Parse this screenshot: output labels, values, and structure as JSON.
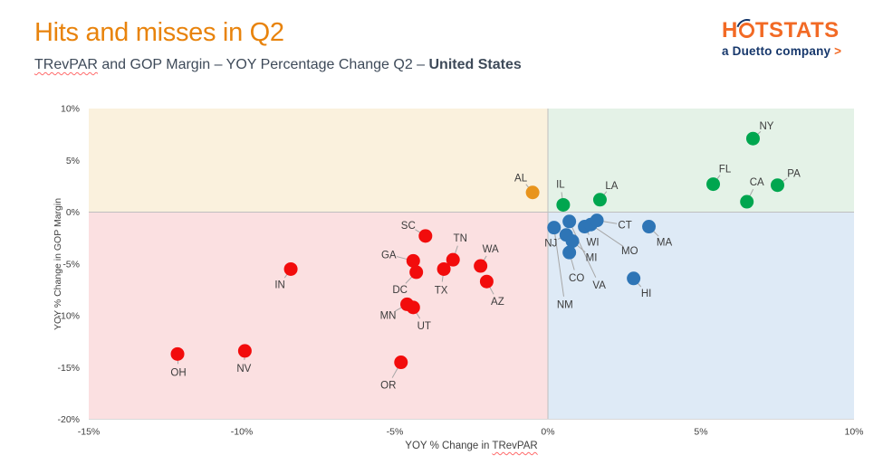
{
  "header": {
    "title": "Hits and misses in Q2",
    "subtitle_trevpar": "TRevPAR",
    "subtitle_mid": " and GOP Margin – YOY Percentage Change Q2 – ",
    "subtitle_country": "United States"
  },
  "logo": {
    "word_start": "H",
    "word_rest": "TSTATS",
    "tagline": "a Duetto company",
    "arrow": ">"
  },
  "colors": {
    "title_orange": "#E8830C",
    "logo_orange": "#F26A25",
    "logo_navy": "#16376B",
    "subtitle_gray": "#3E4A59",
    "axis_text": "#404040",
    "leader_line": "#A6A6A6",
    "zero_line": "#BFBFBF",
    "bottom_axis_line": "#D9D9D9",
    "quadrant_top_left": "#FAF1DD",
    "quadrant_top_right": "#E4F2E7",
    "quadrant_bottom_left": "#FBE0E1",
    "quadrant_bottom_right": "#DEEAF6",
    "red_series": "#F20C0C",
    "orange_series": "#E8941C",
    "green_series": "#00A64F",
    "blue_series": "#2E75B6"
  },
  "chart_data": {
    "type": "scatter",
    "title": "Hits and misses in Q2",
    "subtitle": "TRevPAR and GOP Margin – YOY Percentage Change Q2 – United States",
    "xlabel_prefix": "YOY % Change in ",
    "xlabel_wavy": "TRevPAR",
    "ylabel": "YOY % Change in GOP Margin",
    "xlim": [
      -15,
      10
    ],
    "ylim": [
      -20,
      10
    ],
    "grid": false,
    "legend": false,
    "x_ticks": [
      {
        "value": -15,
        "label": "-15%"
      },
      {
        "value": -10,
        "label": "-10%"
      },
      {
        "value": -5,
        "label": "-5%"
      },
      {
        "value": 0,
        "label": "0%"
      },
      {
        "value": 5,
        "label": "5%"
      },
      {
        "value": 10,
        "label": "10%"
      }
    ],
    "y_ticks": [
      {
        "value": 10,
        "label": "10%"
      },
      {
        "value": 5,
        "label": "5%"
      },
      {
        "value": 0,
        "label": "0%"
      },
      {
        "value": -5,
        "label": "-5%"
      },
      {
        "value": -10,
        "label": "-10%"
      },
      {
        "value": -15,
        "label": "-15%"
      },
      {
        "value": -20,
        "label": "-20%"
      }
    ],
    "series": [
      {
        "name": "trevpar-down-gop-down",
        "color": "#F20C0C",
        "points": [
          {
            "state": "OH",
            "x": -12.1,
            "y": -13.7,
            "ldx": 1,
            "ldy": 20
          },
          {
            "state": "NV",
            "x": -9.9,
            "y": -13.4,
            "ldx": -1,
            "ldy": 19
          },
          {
            "state": "IN",
            "x": -8.4,
            "y": -5.5,
            "ldx": -12,
            "ldy": 17
          },
          {
            "state": "SC",
            "x": -4.0,
            "y": -2.3,
            "ldx": -19,
            "ldy": -12
          },
          {
            "state": "GA",
            "x": -4.4,
            "y": -4.7,
            "ldx": -27,
            "ldy": -7
          },
          {
            "state": "DC",
            "x": -4.3,
            "y": -5.8,
            "ldx": -18,
            "ldy": 19
          },
          {
            "state": "TN",
            "x": -3.1,
            "y": -4.6,
            "ldx": 8,
            "ldy": -24
          },
          {
            "state": "TX",
            "x": -3.4,
            "y": -5.5,
            "ldx": -3,
            "ldy": 23
          },
          {
            "state": "WA",
            "x": -2.2,
            "y": -5.2,
            "ldx": 11,
            "ldy": -19
          },
          {
            "state": "AZ",
            "x": -2.0,
            "y": -6.7,
            "ldx": 12,
            "ldy": 22
          },
          {
            "state": "MN",
            "x": -4.6,
            "y": -8.9,
            "ldx": -21,
            "ldy": 12
          },
          {
            "state": "UT",
            "x": -4.4,
            "y": -9.2,
            "ldx": 12,
            "ldy": 20
          },
          {
            "state": "OR",
            "x": -4.8,
            "y": -14.5,
            "ldx": -14,
            "ldy": 25
          }
        ]
      },
      {
        "name": "trevpar-down-gop-up",
        "color": "#E8941C",
        "points": [
          {
            "state": "AL",
            "x": -0.5,
            "y": 1.9,
            "ldx": -13,
            "ldy": -16
          }
        ]
      },
      {
        "name": "trevpar-up-gop-up",
        "color": "#00A64F",
        "points": [
          {
            "state": "IL",
            "x": 0.5,
            "y": 0.7,
            "ldx": -3,
            "ldy": -23
          },
          {
            "state": "LA",
            "x": 1.7,
            "y": 1.2,
            "ldx": 13,
            "ldy": -16
          },
          {
            "state": "NY",
            "x": 6.7,
            "y": 7.1,
            "ldx": 15,
            "ldy": -14
          },
          {
            "state": "FL",
            "x": 5.4,
            "y": 2.7,
            "ldx": 13,
            "ldy": -17
          },
          {
            "state": "CA",
            "x": 6.5,
            "y": 1.0,
            "ldx": 11,
            "ldy": -22
          },
          {
            "state": "PA",
            "x": 7.5,
            "y": 2.6,
            "ldx": 18,
            "ldy": -13
          }
        ]
      },
      {
        "name": "trevpar-up-gop-down",
        "color": "#2E75B6",
        "points": [
          {
            "state": "NM",
            "x": 0.2,
            "y": -1.5,
            "ldx": 12,
            "ldy": 85
          },
          {
            "state": "VA",
            "x": 0.7,
            "y": -0.9,
            "ldx": 33,
            "ldy": 70
          },
          {
            "state": "NJ",
            "x": 0.6,
            "y": -2.2,
            "ldx": -17,
            "ldy": 9
          },
          {
            "state": "MI",
            "x": 0.8,
            "y": -2.8,
            "ldx": 21,
            "ldy": 18
          },
          {
            "state": "WI",
            "x": 1.2,
            "y": -1.4,
            "ldx": 9,
            "ldy": 17
          },
          {
            "state": "MO",
            "x": 1.4,
            "y": -1.2,
            "ldx": 43,
            "ldy": 29
          },
          {
            "state": "CT",
            "x": 1.6,
            "y": -0.8,
            "ldx": 31,
            "ldy": 5
          },
          {
            "state": "CO",
            "x": 0.7,
            "y": -3.9,
            "ldx": 8,
            "ldy": 28
          },
          {
            "state": "MA",
            "x": 3.3,
            "y": -1.4,
            "ldx": 17,
            "ldy": 17
          },
          {
            "state": "HI",
            "x": 2.8,
            "y": -6.4,
            "ldx": 14,
            "ldy": 16
          }
        ]
      }
    ]
  }
}
